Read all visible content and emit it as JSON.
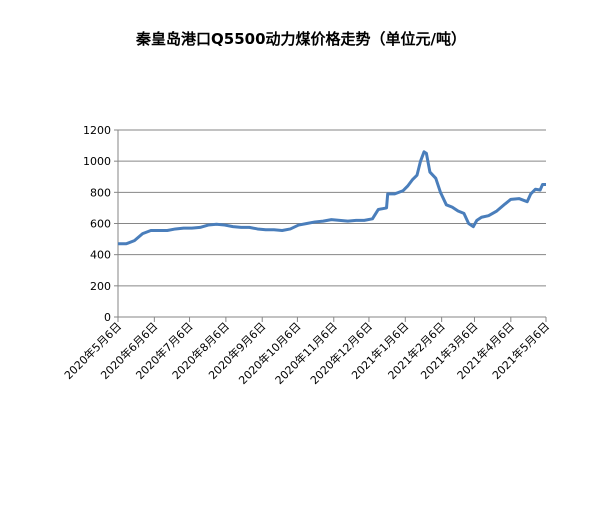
{
  "chart_data": {
    "type": "line",
    "title": "秦皇岛港口Q5500动力煤价格走势（单位元/吨）",
    "x": [
      "2020-05-06",
      "2020-05-13",
      "2020-05-20",
      "2020-05-27",
      "2020-06-03",
      "2020-06-10",
      "2020-06-17",
      "2020-06-24",
      "2020-07-01",
      "2020-07-08",
      "2020-07-15",
      "2020-07-22",
      "2020-07-29",
      "2020-08-05",
      "2020-08-12",
      "2020-08-19",
      "2020-08-26",
      "2020-09-02",
      "2020-09-09",
      "2020-09-16",
      "2020-09-23",
      "2020-09-30",
      "2020-10-07",
      "2020-10-14",
      "2020-10-21",
      "2020-10-28",
      "2020-11-04",
      "2020-11-11",
      "2020-11-18",
      "2020-11-25",
      "2020-12-02",
      "2020-12-09",
      "2020-12-14",
      "2020-12-21",
      "2020-12-22",
      "2020-12-28",
      "2021-01-04",
      "2021-01-08",
      "2021-01-12",
      "2021-01-16",
      "2021-01-19",
      "2021-01-22",
      "2021-01-24",
      "2021-01-27",
      "2021-02-01",
      "2021-02-05",
      "2021-02-10",
      "2021-02-15",
      "2021-02-20",
      "2021-02-25",
      "2021-03-01",
      "2021-03-05",
      "2021-03-08",
      "2021-03-12",
      "2021-03-18",
      "2021-03-25",
      "2021-04-01",
      "2021-04-06",
      "2021-04-13",
      "2021-04-20",
      "2021-04-23",
      "2021-04-27",
      "2021-05-01",
      "2021-05-03",
      "2021-05-06"
    ],
    "series": [
      {
        "color": "#4a7ebb",
        "values": [
          470,
          470,
          490,
          535,
          555,
          555,
          555,
          565,
          570,
          570,
          575,
          590,
          595,
          590,
          580,
          575,
          575,
          565,
          560,
          560,
          555,
          565,
          590,
          600,
          610,
          615,
          625,
          620,
          615,
          620,
          620,
          630,
          690,
          700,
          790,
          790,
          810,
          840,
          880,
          910,
          1000,
          1060,
          1050,
          930,
          890,
          800,
          720,
          705,
          680,
          665,
          600,
          580,
          620,
          640,
          650,
          680,
          725,
          755,
          760,
          740,
          790,
          820,
          815,
          850,
          850
        ]
      }
    ],
    "xlim": [
      "2020-05-06",
      "2021-05-06"
    ],
    "xticks": [
      {
        "value": "2020-05-06",
        "label": "2020年5月6日"
      },
      {
        "value": "2020-06-06",
        "label": "2020年6月6日"
      },
      {
        "value": "2020-07-06",
        "label": "2020年7月6日"
      },
      {
        "value": "2020-08-06",
        "label": "2020年8月6日"
      },
      {
        "value": "2020-09-06",
        "label": "2020年9月6日"
      },
      {
        "value": "2020-10-06",
        "label": "2020年10月6日"
      },
      {
        "value": "2020-11-06",
        "label": "2020年11月6日"
      },
      {
        "value": "2020-12-06",
        "label": "2020年12月6日"
      },
      {
        "value": "2021-01-06",
        "label": "2021年1月6日"
      },
      {
        "value": "2021-02-06",
        "label": "2021年2月6日"
      },
      {
        "value": "2021-03-06",
        "label": "2021年3月6日"
      },
      {
        "value": "2021-04-06",
        "label": "2021年4月6日"
      },
      {
        "value": "2021-05-06",
        "label": "2021年5月6日"
      }
    ],
    "ylim": [
      0,
      1200
    ],
    "yticks": [
      0,
      200,
      400,
      600,
      800,
      1000,
      1200
    ],
    "grid": true
  }
}
